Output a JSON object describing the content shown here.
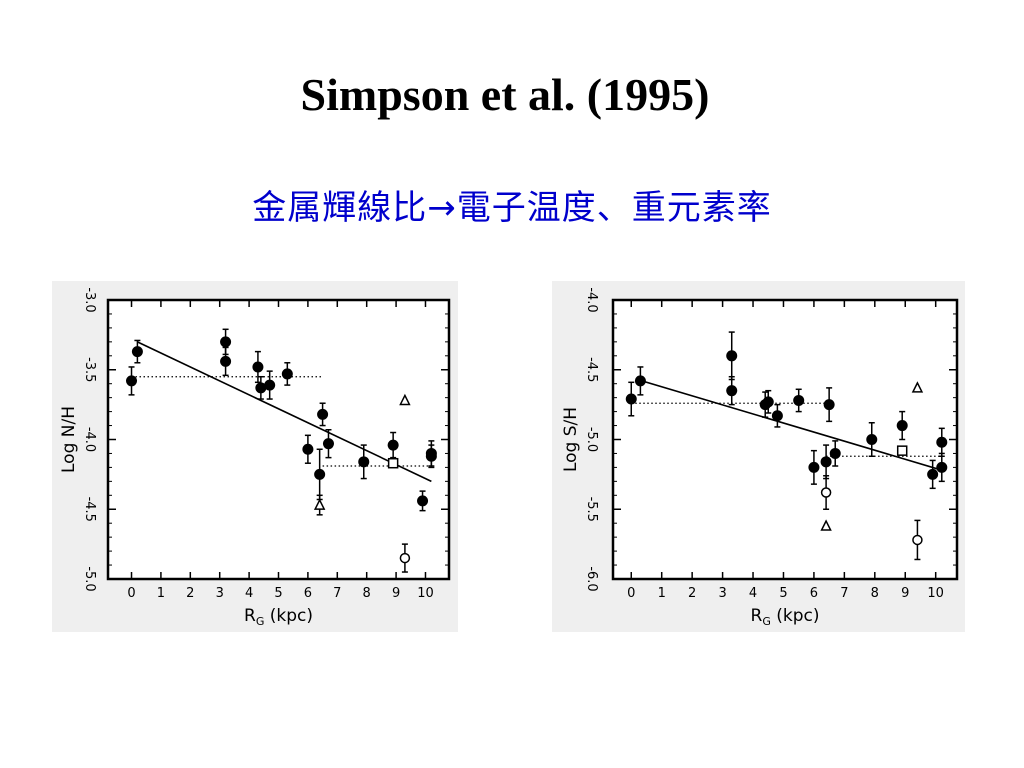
{
  "slide": {
    "title": "Simpson et al. (1995)",
    "subtitle": "金属輝線比→電子温度、重元素率"
  },
  "colors": {
    "subtitle": "#0000cc",
    "marker": "#000000",
    "panel_bg": "#efefef"
  },
  "chart_data": [
    {
      "type": "scatter",
      "ylabel": "Log N/H",
      "xlabel": "R",
      "xlabel_sub": "G",
      "xlabel_unit": "(kpc)",
      "xlim": [
        -0.8,
        10.8
      ],
      "ylim": [
        -5.0,
        -3.0
      ],
      "xticks": [
        0,
        1,
        2,
        3,
        4,
        5,
        6,
        7,
        8,
        9,
        10
      ],
      "yticks": [
        -3.0,
        -3.5,
        -4.0,
        -4.5,
        -5.0
      ],
      "ytick_labels": [
        "-3.0",
        "-3.5",
        "-4.0",
        "-4.5",
        "-5.0"
      ],
      "fit_line": {
        "x": [
          0.2,
          10.2
        ],
        "y": [
          -3.3,
          -4.3
        ]
      },
      "dotted_lines": [
        {
          "x": [
            0.0,
            6.5
          ],
          "y": [
            -3.55,
            -3.55
          ]
        },
        {
          "x": [
            6.5,
            10.2
          ],
          "y": [
            -4.19,
            -4.19
          ]
        }
      ],
      "series": [
        {
          "marker": "filled-circle",
          "x": [
            0.0,
            0.2,
            3.2,
            3.2,
            4.3,
            4.4,
            4.7,
            5.3,
            6.0,
            6.4,
            6.5,
            6.7,
            7.9,
            8.9,
            9.9,
            10.2,
            10.2
          ],
          "y": [
            -3.58,
            -3.37,
            -3.3,
            -3.44,
            -3.48,
            -3.63,
            -3.61,
            -3.53,
            -4.07,
            -4.25,
            -3.82,
            -4.03,
            -4.16,
            -4.04,
            -4.44,
            -4.12,
            -4.1
          ],
          "err": [
            0.1,
            0.08,
            0.09,
            0.1,
            0.11,
            0.08,
            0.1,
            0.08,
            0.1,
            0.18,
            0.08,
            0.1,
            0.12,
            0.09,
            0.07,
            0.08,
            0.09
          ]
        },
        {
          "marker": "open-square",
          "x": [
            8.9
          ],
          "y": [
            -4.17
          ],
          "err": [
            0.0
          ]
        },
        {
          "marker": "open-triangle",
          "x": [
            6.4,
            9.3
          ],
          "y": [
            -4.47,
            -3.72
          ],
          "err": [
            0.07,
            0.0
          ]
        },
        {
          "marker": "open-circle",
          "x": [
            9.3
          ],
          "y": [
            -4.85
          ],
          "err": [
            0.1
          ]
        }
      ]
    },
    {
      "type": "scatter",
      "ylabel": "Log S/H",
      "xlabel": "R",
      "xlabel_sub": "G",
      "xlabel_unit": "(kpc)",
      "xlim": [
        -0.6,
        10.7
      ],
      "ylim": [
        -6.0,
        -4.0
      ],
      "xticks": [
        0,
        1,
        2,
        3,
        4,
        5,
        6,
        7,
        8,
        9,
        10
      ],
      "yticks": [
        -4.0,
        -4.5,
        -5.0,
        -5.5,
        -6.0
      ],
      "ytick_labels": [
        "-4.0",
        "-4.5",
        "-5.0",
        "-5.5",
        "-6.0"
      ],
      "fit_line": {
        "x": [
          0.2,
          10.2
        ],
        "y": [
          -4.57,
          -5.22
        ]
      },
      "dotted_lines": [
        {
          "x": [
            0.0,
            6.4
          ],
          "y": [
            -4.74,
            -4.74
          ]
        },
        {
          "x": [
            6.4,
            10.2
          ],
          "y": [
            -5.12,
            -5.12
          ]
        }
      ],
      "series": [
        {
          "marker": "filled-circle",
          "x": [
            0.0,
            0.3,
            3.3,
            3.3,
            4.4,
            4.5,
            4.8,
            5.5,
            6.0,
            6.4,
            6.5,
            6.7,
            7.9,
            8.9,
            9.9,
            10.2,
            10.2
          ],
          "y": [
            -4.71,
            -4.58,
            -4.4,
            -4.65,
            -4.75,
            -4.73,
            -4.83,
            -4.72,
            -5.2,
            -5.16,
            -4.75,
            -5.1,
            -5.0,
            -4.9,
            -5.25,
            -5.02,
            -5.2
          ],
          "err": [
            0.12,
            0.1,
            0.17,
            0.1,
            0.09,
            0.08,
            0.08,
            0.08,
            0.12,
            0.12,
            0.12,
            0.09,
            0.12,
            0.1,
            0.1,
            0.1,
            0.1
          ]
        },
        {
          "marker": "open-square",
          "x": [
            8.9
          ],
          "y": [
            -5.08
          ],
          "err": [
            0.0
          ]
        },
        {
          "marker": "open-triangle",
          "x": [
            6.4,
            9.4
          ],
          "y": [
            -5.62,
            -4.63
          ],
          "err": [
            0.0,
            0.0
          ]
        },
        {
          "marker": "open-circle",
          "x": [
            6.4,
            9.4
          ],
          "y": [
            -5.38,
            -5.72
          ],
          "err": [
            0.12,
            0.14
          ]
        }
      ]
    }
  ]
}
